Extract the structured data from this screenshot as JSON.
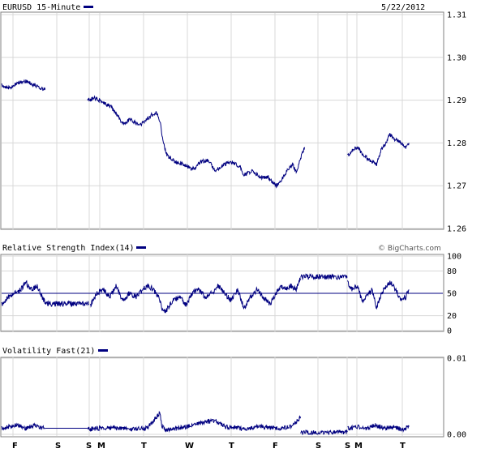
{
  "colors": {
    "line": "#000080",
    "grid": "#d8d8d8",
    "frame": "#808080"
  },
  "header": {
    "title": "EURUSD 15-Minute",
    "date": "5/22/2012"
  },
  "credit": "© BigCharts.com",
  "chart_data": [
    {
      "type": "line",
      "title": "EURUSD 15-Minute",
      "ylim": [
        1.26,
        1.31
      ],
      "y_ticks": [
        "1.31",
        "1.30",
        "1.29",
        "1.28",
        "1.27",
        "1.26"
      ],
      "x_ticks": [
        "F",
        "S",
        "S",
        "M",
        "T",
        "W",
        "T",
        "F",
        "S",
        "S",
        "M",
        "T"
      ],
      "grid": true,
      "series": [
        {
          "segments": [
            {
              "x": [
                0,
                10,
                20,
                30,
                40,
                54
              ],
              "y": [
                1.2935,
                1.2928,
                1.294,
                1.2945,
                1.2935,
                1.2925
              ]
            },
            {
              "x": [
                106,
                115,
                125,
                135,
                145,
                150,
                160,
                170,
                180,
                185,
                192,
                196,
                200,
                205,
                215,
                225,
                235,
                240,
                245,
                255,
                265,
                275,
                285,
                295,
                300,
                310,
                320,
                330,
                340,
                345,
                350,
                355,
                360,
                365,
                370,
                375
              ],
              "y": [
                1.29,
                1.2905,
                1.2895,
                1.2885,
                1.286,
                1.2845,
                1.2855,
                1.284,
                1.2855,
                1.2865,
                1.287,
                1.285,
                1.28,
                1.277,
                1.2755,
                1.275,
                1.274,
                1.274,
                1.2755,
                1.276,
                1.2735,
                1.275,
                1.2755,
                1.2745,
                1.2725,
                1.2735,
                1.272,
                1.272,
                1.27,
                1.271,
                1.2725,
                1.274,
                1.275,
                1.273,
                1.2765,
                1.279
              ]
            },
            {
              "x": [
                428,
                433,
                440,
                448,
                456,
                464,
                470,
                476,
                480,
                486,
                494,
                500,
                504
              ],
              "y": [
                1.277,
                1.278,
                1.279,
                1.277,
                1.276,
                1.275,
                1.2785,
                1.28,
                1.282,
                1.281,
                1.28,
                1.279,
                1.28
              ]
            }
          ]
        }
      ]
    },
    {
      "type": "line",
      "title": "Relative Strength Index(14)",
      "ylim": [
        0,
        100
      ],
      "y_ticks": [
        "100",
        "80",
        "50",
        "20",
        "0"
      ],
      "reference_line": 50,
      "grid": true,
      "series": [
        {
          "segments": [
            {
              "x": [
                0,
                8,
                16,
                24,
                30,
                36,
                44,
                50,
                54,
                60,
                70,
                80,
                90,
                100,
                108
              ],
              "y": [
                35,
                45,
                50,
                55,
                65,
                55,
                60,
                45,
                38,
                36,
                36,
                36,
                36,
                36,
                36
              ]
            },
            {
              "x": [
                110,
                118,
                126,
                134,
                142,
                150,
                158,
                166,
                174,
                182,
                188,
                194,
                200,
                206,
                212,
                220,
                228,
                236,
                244,
                252,
                260,
                268,
                276,
                284,
                292,
                300,
                308,
                316,
                324,
                332,
                340,
                346,
                352,
                358,
                364,
                370
              ],
              "y": [
                35,
                50,
                55,
                45,
                60,
                40,
                50,
                45,
                55,
                60,
                55,
                45,
                25,
                30,
                40,
                45,
                35,
                50,
                55,
                45,
                50,
                60,
                50,
                40,
                55,
                30,
                45,
                55,
                45,
                35,
                50,
                60,
                55,
                60,
                55,
                70
              ]
            },
            {
              "x": [
                370,
                380,
                400,
                420,
                428
              ],
              "y": [
                72,
                72,
                72,
                72,
                72
              ]
            },
            {
              "x": [
                428,
                434,
                440,
                446,
                452,
                458,
                464,
                470,
                476,
                482,
                488,
                494,
                500,
                504
              ],
              "y": [
                65,
                55,
                60,
                40,
                45,
                55,
                30,
                50,
                60,
                65,
                55,
                40,
                45,
                55
              ]
            }
          ]
        }
      ]
    },
    {
      "type": "line",
      "title": "Volatility Fast(21)",
      "ylim": [
        0,
        0.01
      ],
      "y_ticks": [
        "0.01",
        "0.00"
      ],
      "grid": true,
      "series": [
        {
          "segments": [
            {
              "x": [
                0,
                10,
                20,
                30,
                40,
                48,
                54
              ],
              "y": [
                0.0008,
                0.001,
                0.0012,
                0.0008,
                0.0012,
                0.0009,
                0.0008
              ]
            },
            {
              "x": [
                54,
                106
              ],
              "y": [
                0.0008,
                0.0008
              ]
            },
            {
              "x": [
                106,
                120,
                140,
                160,
                180,
                196,
                198,
                202,
                220,
                240,
                262,
                280,
                300,
                320,
                340,
                360,
                370
              ],
              "y": [
                0.0007,
                0.0008,
                0.0009,
                0.0006,
                0.0008,
                0.0028,
                0.0012,
                0.0006,
                0.0008,
                0.0013,
                0.0018,
                0.0009,
                0.0007,
                0.001,
                0.0008,
                0.001,
                0.0023
              ]
            },
            {
              "x": [
                370,
                428
              ],
              "y": [
                0.0002,
                0.0003
              ]
            },
            {
              "x": [
                428,
                440,
                450,
                462,
                474,
                486,
                496,
                504
              ],
              "y": [
                0.0008,
                0.001,
                0.0007,
                0.0012,
                0.0008,
                0.001,
                0.0006,
                0.001
              ]
            }
          ]
        }
      ]
    }
  ],
  "panels": {
    "price": {
      "title": "EURUSD 15-Minute"
    },
    "rsi": {
      "title": "Relative Strength Index(14)"
    },
    "vol": {
      "title": "Volatility Fast(21)"
    }
  }
}
